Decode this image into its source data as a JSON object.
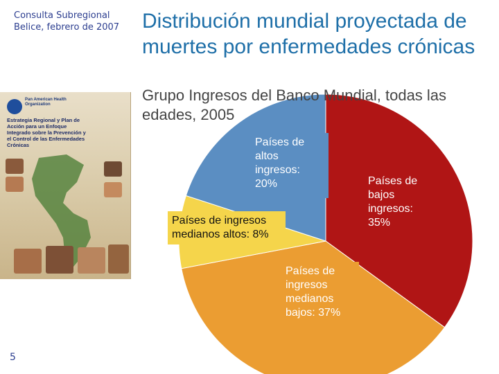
{
  "header": {
    "conference_line1": "Consulta Subregional",
    "conference_line2": "Belice, febrero de 2007",
    "title": "Distribución mundial proyectada de muertes por enfermedades crónicas",
    "subtitle": "Grupo Ingresos del Banco Mundial, todas las edades, 2005"
  },
  "footer": {
    "page_number": "5"
  },
  "cover": {
    "org": "Pan American Health Organization",
    "title": "Estrategia Regional y Plan de Acción para un Enfoque Integrado sobre la Prevención y el Control de las Enfermedades Crónicas"
  },
  "chart_data": {
    "type": "pie",
    "title": "",
    "slices": [
      {
        "label": "Países de bajos ingresos: 35%",
        "value": 35,
        "color": "#b01515"
      },
      {
        "label": "Países de ingresos medianos bajos: 37%",
        "value": 37,
        "color": "#eb9d32"
      },
      {
        "label": "Países de ingresos medianos altos: 8%",
        "value": 8,
        "color": "#f5d54b"
      },
      {
        "label": "Países de altos ingresos: 20%",
        "value": 20,
        "color": "#5b8ec2"
      }
    ]
  },
  "colors": {
    "title": "#1e6fa8",
    "conference_text": "#2b3d8f",
    "subtitle": "#444444"
  }
}
